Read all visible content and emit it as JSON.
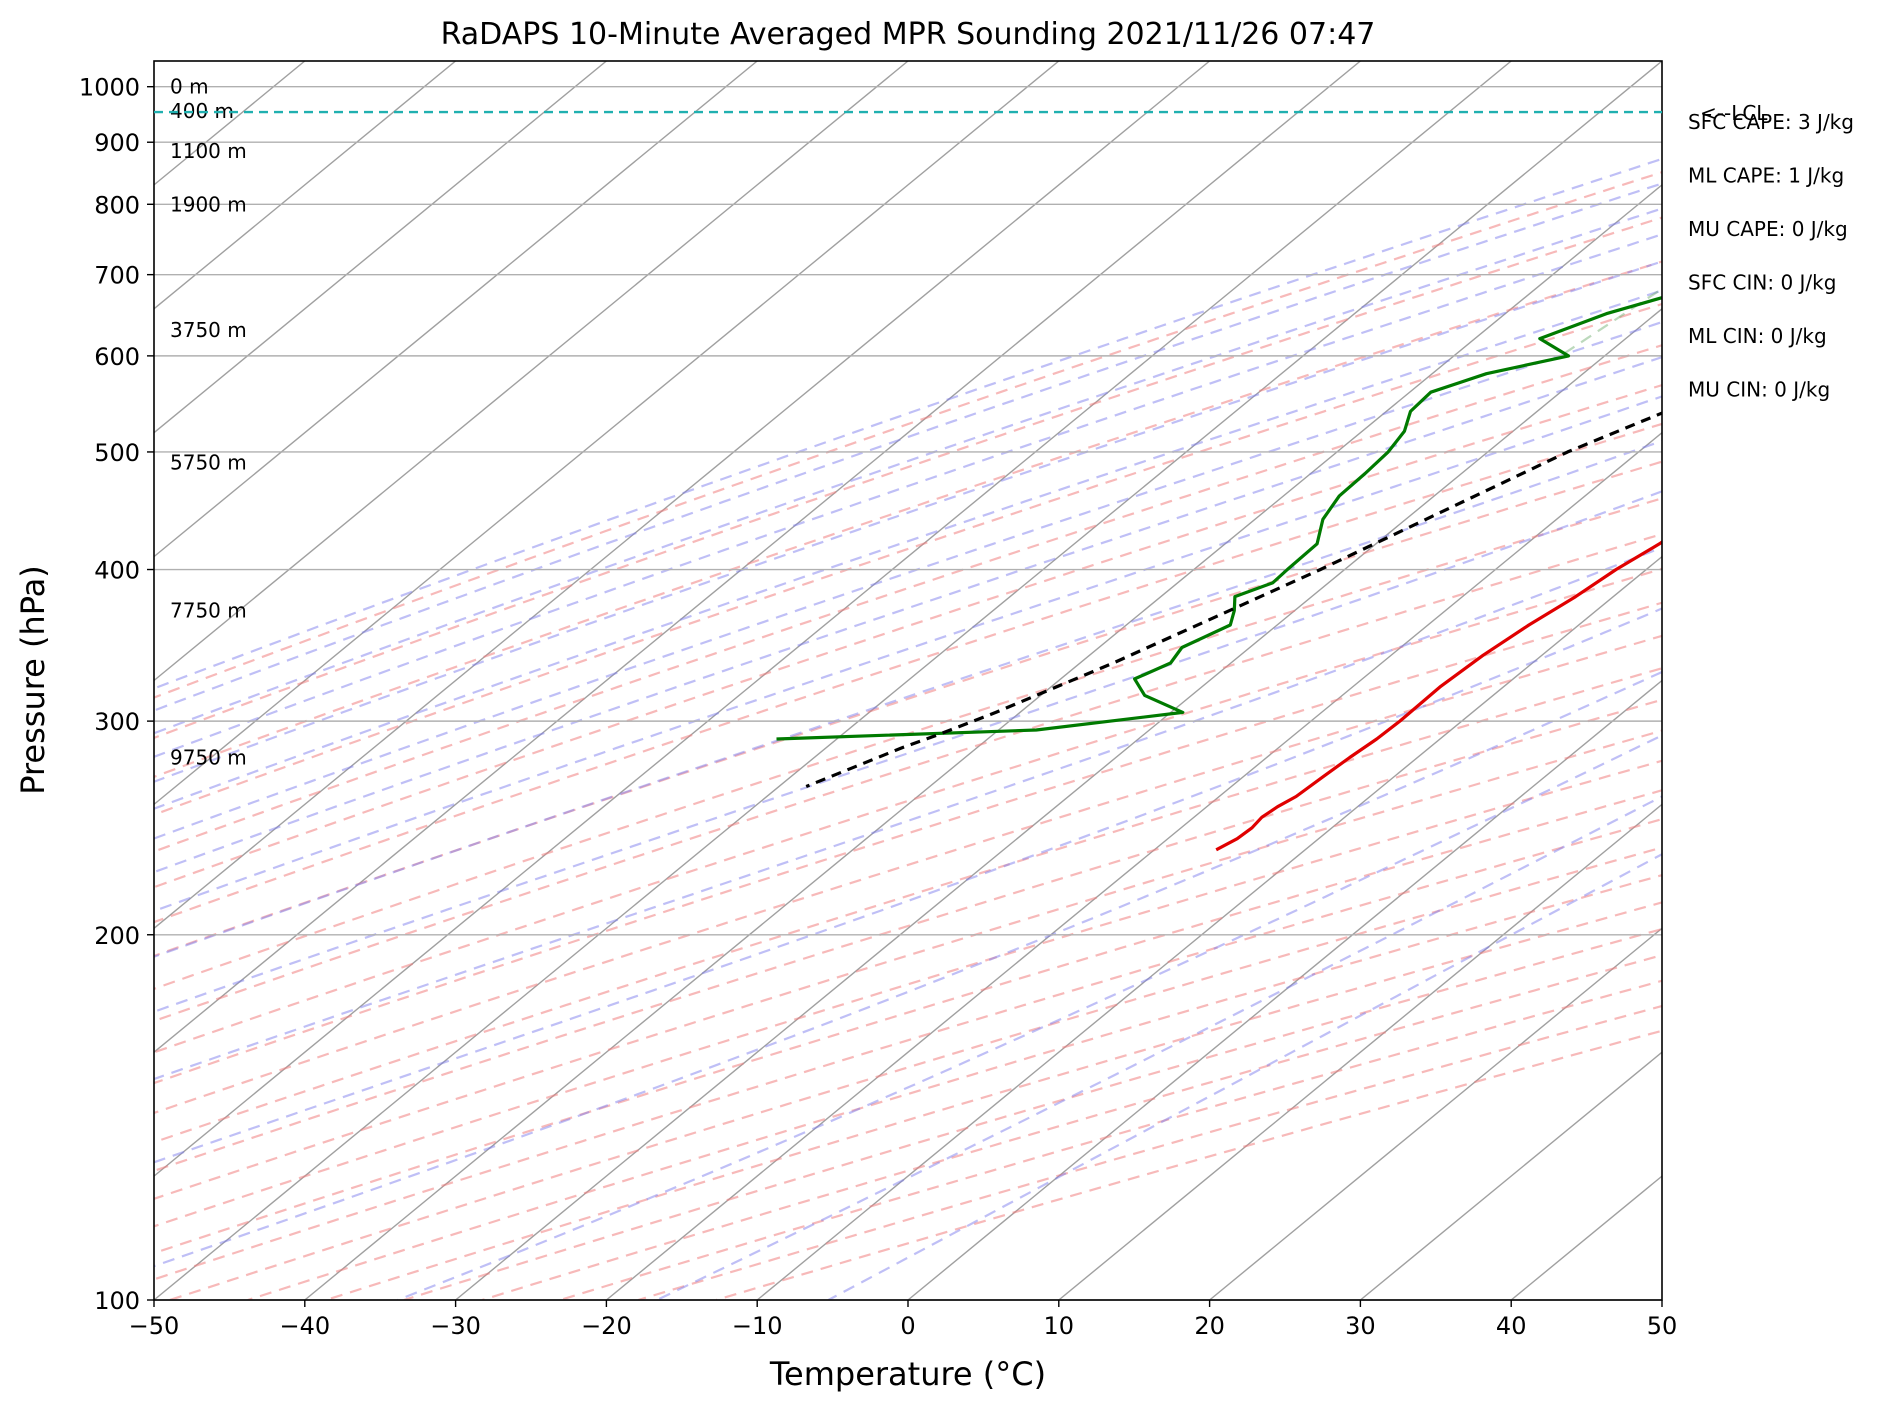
{
  "chart_data": {
    "type": "line",
    "title": "RaDAPS 10-Minute Averaged MPR Sounding 2021/11/26 07:47",
    "xlabel": "Temperature (°C)",
    "ylabel": "Pressure (hPa)",
    "xlim": [
      -50,
      50
    ],
    "ylim": [
      1050,
      100
    ],
    "y_scale": "log",
    "x_ticks": [
      "−50",
      "−40",
      "−30",
      "−20",
      "−10",
      "0",
      "10",
      "20",
      "30",
      "40",
      "50"
    ],
    "y_ticks": [
      100,
      200,
      300,
      400,
      500,
      600,
      700,
      800,
      900,
      1000
    ],
    "grid": true,
    "series": [
      {
        "color": "#e00000",
        "x": [
          5.6,
          4.2,
          3.1,
          2.6,
          2.8,
          3.1,
          3.3,
          3.8,
          4.3,
          4.0,
          3.2,
          3.5,
          3.8,
          3.5,
          2.3,
          1.6,
          0.4,
          -0.6,
          -1.6,
          -2.8,
          -3.6,
          -3.8,
          -4.4,
          -5.6,
          -6.5,
          -7.0,
          -8.2,
          -8.8,
          -9.9,
          -10.8,
          -11.2,
          -12.0,
          -12.5,
          -13.3,
          -13.9,
          -14.2,
          -14.1,
          -14.2,
          -14.5,
          -14.7,
          -14.9,
          -15.3,
          -15.5,
          -15.3,
          -15.4,
          -15.9
        ],
        "y": [
          1000,
          990,
          980,
          960,
          940,
          920,
          900,
          880,
          860,
          840,
          820,
          800,
          780,
          760,
          740,
          720,
          700,
          680,
          660,
          640,
          620,
          600,
          580,
          560,
          540,
          520,
          500,
          480,
          460,
          440,
          420,
          400,
          380,
          360,
          340,
          320,
          300,
          290,
          280,
          270,
          260,
          255,
          250,
          245,
          240,
          235
        ]
      },
      {
        "color": "#007a00",
        "x": [
          2.7,
          0.5,
          -0.9,
          -0.5,
          0.0,
          2.3,
          2.2,
          1.8,
          2.5,
          3.3,
          -0.8,
          -5.2,
          -5.3,
          -6.5,
          -7.4,
          -7.6,
          -13.2,
          -21.2,
          -27.5,
          -30.4,
          -30.7,
          -30.9,
          -33.3,
          -35.7,
          -32.4,
          -36.4,
          -38.6,
          -38.4,
          -37.2,
          -36.6,
          -36.4,
          -36.3,
          -35.5,
          -33.9,
          -33.8,
          -33.7,
          -35.1,
          -34.0,
          -33.1,
          -34.5,
          -34.0,
          -35.1,
          -33.1,
          -29.2,
          -37.5,
          -54.0
        ],
        "y": [
          1000,
          995,
          990,
          975,
          960,
          955,
          940,
          920,
          900,
          880,
          850,
          830,
          800,
          790,
          785,
          780,
          755,
          725,
          700,
          690,
          680,
          670,
          650,
          620,
          600,
          580,
          560,
          540,
          520,
          500,
          480,
          460,
          440,
          420,
          400,
          390,
          380,
          370,
          360,
          345,
          335,
          325,
          315,
          305,
          295,
          290
        ]
      },
      {
        "color": "#000000",
        "x": [
          5.6,
          2.5,
          -1.5,
          -6.3,
          -11.6,
          -17.0,
          -24.7,
          -31.6,
          -37.8,
          -41.6,
          -43.7,
          -45.0,
          -48.2
        ],
        "y": [
          1000,
          953,
          900,
          800,
          700,
          600,
          500,
          400,
          335,
          305,
          292,
          285,
          265
        ]
      }
    ],
    "annotations": {
      "heights": [
        {
          "label": "9750 m",
          "p": 280
        },
        {
          "label": "7750 m",
          "p": 370
        },
        {
          "label": "5750 m",
          "p": 490
        },
        {
          "label": "3750 m",
          "p": 630
        },
        {
          "label": "1900 m",
          "p": 800
        },
        {
          "label": "1100 m",
          "p": 885
        },
        {
          "label": "400 m",
          "p": 955
        },
        {
          "label": "0 m",
          "p": 1000
        }
      ],
      "lcl": {
        "label": "<--LCL",
        "p": 953
      }
    },
    "indices": [
      "SFC CAPE: 3 J/kg",
      "ML CAPE: 1 J/kg",
      "MU CAPE: 0 J/kg",
      "SFC CIN: 0 J/kg",
      "ML CIN: 0 J/kg",
      "MU CIN: 0 J/kg"
    ],
    "colors": {
      "isotherm": "#a0a0a0",
      "dry_adiabat": "#f08080",
      "moist_adiabat": "#8080ee",
      "mixing_ratio": "#6aaa6a",
      "lcl": "#20b0b0"
    }
  }
}
